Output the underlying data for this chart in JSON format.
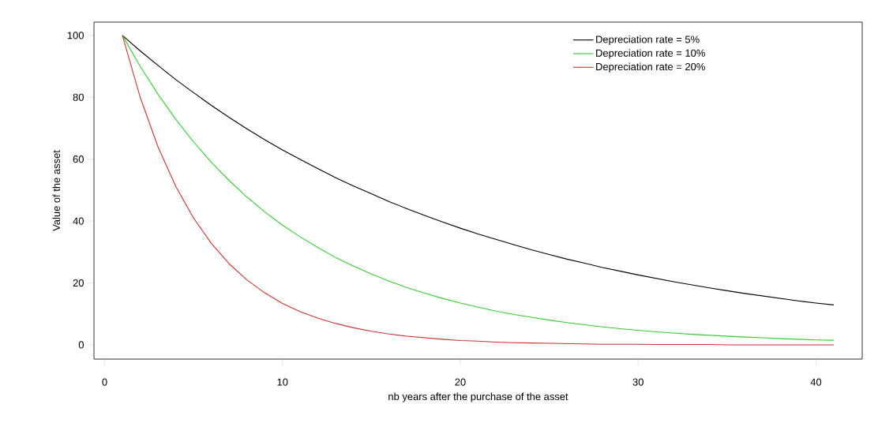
{
  "chart_data": {
    "type": "line",
    "xlabel": "nb years after the purchase of the asset",
    "ylabel": "Value of the asset",
    "x": [
      1,
      2,
      3,
      4,
      5,
      6,
      7,
      8,
      9,
      10,
      11,
      12,
      13,
      14,
      15,
      16,
      17,
      18,
      19,
      20,
      21,
      22,
      23,
      24,
      25,
      26,
      27,
      28,
      29,
      30,
      31,
      32,
      33,
      34,
      35,
      36,
      37,
      38,
      39,
      40,
      41
    ],
    "series": [
      {
        "name": "Depreciation rate = 5%",
        "color": "#000000",
        "values": [
          100,
          95,
          90.3,
          85.7,
          81.5,
          77.4,
          73.5,
          69.8,
          66.3,
          63.0,
          59.9,
          56.9,
          54.0,
          51.3,
          48.8,
          46.3,
          44.0,
          41.8,
          39.7,
          37.7,
          35.8,
          34.1,
          32.4,
          30.7,
          29.2,
          27.7,
          26.4,
          25.0,
          23.8,
          22.6,
          21.5,
          20.4,
          19.4,
          18.4,
          17.5,
          16.6,
          15.8,
          15.0,
          14.2,
          13.5,
          12.9
        ]
      },
      {
        "name": "Depreciation rate = 10%",
        "color": "#33cc33",
        "values": [
          100,
          90,
          81,
          72.9,
          65.6,
          59.0,
          53.1,
          47.8,
          43.0,
          38.7,
          34.9,
          31.4,
          28.2,
          25.4,
          22.9,
          20.6,
          18.5,
          16.7,
          15.0,
          13.5,
          12.2,
          10.9,
          9.8,
          8.9,
          8.0,
          7.2,
          6.5,
          5.8,
          5.2,
          4.7,
          4.2,
          3.8,
          3.4,
          3.1,
          2.8,
          2.5,
          2.3,
          2.0,
          1.8,
          1.6,
          1.5
        ]
      },
      {
        "name": "Depreciation rate = 20%",
        "color": "#cc3333",
        "values": [
          100,
          80,
          64,
          51.2,
          41.0,
          32.8,
          26.2,
          21.0,
          16.8,
          13.4,
          10.7,
          8.6,
          6.9,
          5.5,
          4.4,
          3.5,
          2.8,
          2.3,
          1.8,
          1.4,
          1.2,
          0.9,
          0.7,
          0.6,
          0.5,
          0.4,
          0.3,
          0.2,
          0.2,
          0.2,
          0.1,
          0.1,
          0.1,
          0.1,
          0,
          0,
          0,
          0,
          0,
          0,
          0
        ]
      }
    ],
    "xlim": [
      -0.6,
      42.6
    ],
    "ylim": [
      -4.6,
      104.3
    ],
    "xticks": [
      0,
      10,
      20,
      30,
      40
    ],
    "yticks": [
      0,
      20,
      40,
      60,
      80,
      100
    ],
    "legend": "top right",
    "grid": false,
    "marker": "none",
    "line_style": "solid"
  }
}
